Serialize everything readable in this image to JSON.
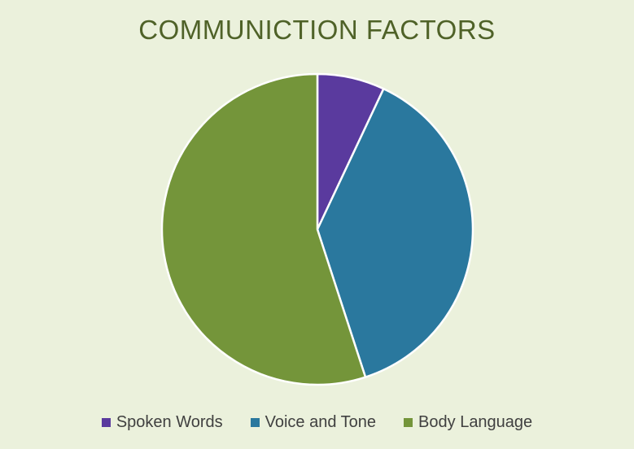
{
  "chart_data": {
    "type": "pie",
    "title": "COMMUNICTION FACTORS",
    "categories": [
      "Spoken Words",
      "Voice and Tone",
      "Body Language"
    ],
    "values": [
      7,
      38,
      55
    ],
    "colors": [
      "#5a3a9e",
      "#2a789e",
      "#74953a"
    ],
    "start_angle_deg": 0,
    "direction": "clockwise",
    "legend_position": "bottom",
    "data_labels": false
  }
}
